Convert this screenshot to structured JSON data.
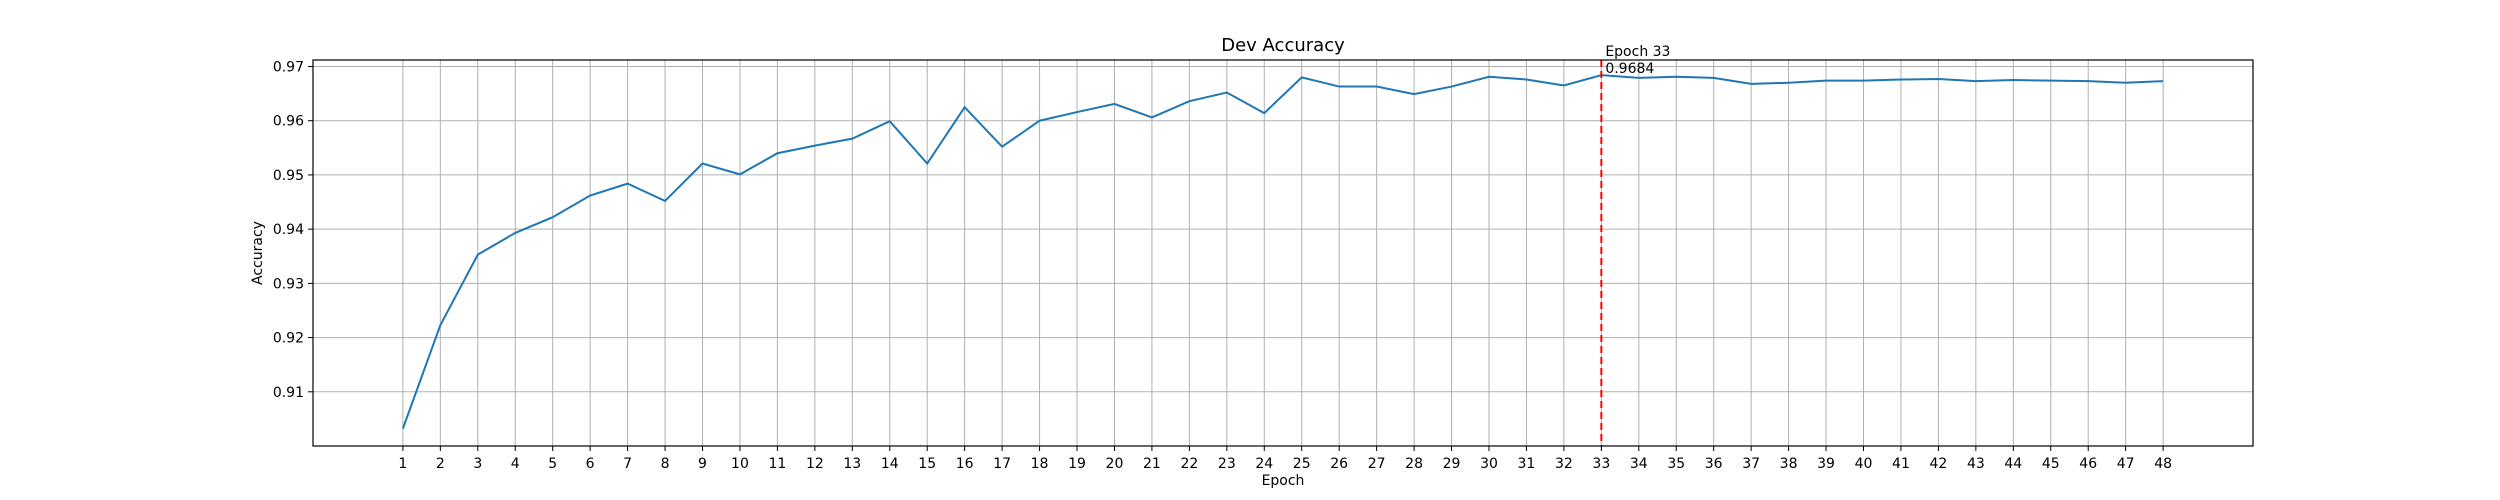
{
  "chart_data": {
    "type": "line",
    "title": "Dev Accuracy",
    "xlabel": "Epoch",
    "ylabel": "Accuracy",
    "grid": true,
    "xlim": [
      -1.4,
      50.4
    ],
    "ylim": [
      0.9,
      0.9712
    ],
    "yticks": [
      0.91,
      0.92,
      0.93,
      0.94,
      0.95,
      0.96,
      0.97
    ],
    "ytick_labels": [
      "0.91",
      "0.92",
      "0.93",
      "0.94",
      "0.95",
      "0.96",
      "0.97"
    ],
    "x": [
      1,
      2,
      3,
      4,
      5,
      6,
      7,
      8,
      9,
      10,
      11,
      12,
      13,
      14,
      15,
      16,
      17,
      18,
      19,
      20,
      21,
      22,
      23,
      24,
      25,
      26,
      27,
      28,
      29,
      30,
      31,
      32,
      33,
      34,
      35,
      36,
      37,
      38,
      39,
      40,
      41,
      42,
      43,
      44,
      45,
      46,
      47,
      48
    ],
    "series": [
      {
        "color": "#1f77b4",
        "values": [
          0.9032,
          0.9223,
          0.9353,
          0.9393,
          0.9422,
          0.9462,
          0.9484,
          0.9452,
          0.9521,
          0.9501,
          0.954,
          0.9554,
          0.9567,
          0.9599,
          0.9521,
          0.9625,
          0.9552,
          0.96,
          0.9616,
          0.9631,
          0.9606,
          0.9636,
          0.9652,
          0.9614,
          0.968,
          0.9663,
          0.9663,
          0.9649,
          0.9663,
          0.9681,
          0.9676,
          0.9665,
          0.9684,
          0.9679,
          0.9681,
          0.9679,
          0.9668,
          0.967,
          0.9674,
          0.9674,
          0.9676,
          0.9677,
          0.9673,
          0.9675,
          0.9674,
          0.9673,
          0.967,
          0.9673
        ]
      }
    ],
    "marker": {
      "x": 33,
      "color": "#ff0000",
      "label_epoch": "Epoch 33",
      "label_value": "0.9684"
    }
  }
}
